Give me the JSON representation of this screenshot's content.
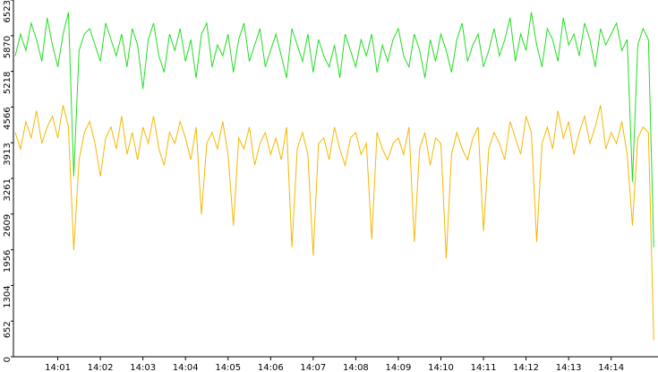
{
  "chart_data": {
    "type": "line",
    "x": [
      0,
      0.125,
      0.25,
      0.375,
      0.5,
      0.625,
      0.75,
      0.875,
      1,
      1.125,
      1.25,
      1.375,
      1.5,
      1.625,
      1.75,
      1.875,
      2,
      2.125,
      2.25,
      2.375,
      2.5,
      2.625,
      2.75,
      2.875,
      3,
      3.125,
      3.25,
      3.375,
      3.5,
      3.625,
      3.75,
      3.875,
      4,
      4.125,
      4.25,
      4.375,
      4.5,
      4.625,
      4.75,
      4.875,
      5,
      5.125,
      5.25,
      5.375,
      5.5,
      5.625,
      5.75,
      5.875,
      6,
      6.125,
      6.25,
      6.375,
      6.5,
      6.625,
      6.75,
      6.875,
      7,
      7.125,
      7.25,
      7.375,
      7.5,
      7.625,
      7.75,
      7.875,
      8,
      8.125,
      8.25,
      8.375,
      8.5,
      8.625,
      8.75,
      8.875,
      9,
      9.125,
      9.25,
      9.375,
      9.5,
      9.625,
      9.75,
      9.875,
      10,
      10.125,
      10.25,
      10.375,
      10.5,
      10.625,
      10.75,
      10.875,
      11,
      11.125,
      11.25,
      11.375,
      11.5,
      11.625,
      11.75,
      11.875,
      12,
      12.125,
      12.25,
      12.375,
      12.5,
      12.625,
      12.75,
      12.875,
      13,
      13.125,
      13.25,
      13.375,
      13.5,
      13.625,
      13.75,
      13.875,
      14,
      14.125,
      14.25,
      14.375,
      14.5,
      14.625,
      14.75,
      14.875,
      15
    ],
    "series": [
      {
        "color": "#22dd22",
        "values": [
          5500,
          5900,
          5600,
          6100,
          5800,
          5400,
          6200,
          5700,
          5300,
          5900,
          6300,
          3300,
          5600,
          5900,
          6000,
          5700,
          5400,
          6100,
          5800,
          5500,
          5900,
          5300,
          6000,
          5700,
          4900,
          5800,
          6100,
          5500,
          5200,
          5900,
          5600,
          6000,
          5400,
          5800,
          5100,
          5900,
          6100,
          5300,
          5700,
          5500,
          5900,
          5200,
          5800,
          6100,
          5400,
          5700,
          6000,
          5300,
          5600,
          5900,
          5500,
          5100,
          6000,
          5700,
          5400,
          5900,
          5200,
          5800,
          5500,
          5300,
          5700,
          5100,
          5900,
          5600,
          5300,
          5800,
          5500,
          5900,
          5200,
          5700,
          5400,
          5800,
          6000,
          5500,
          5300,
          5900,
          5600,
          5100,
          5800,
          5400,
          5900,
          5600,
          5200,
          5800,
          6100,
          5400,
          5700,
          5900,
          5300,
          5600,
          6000,
          5500,
          5800,
          6200,
          5400,
          5900,
          5600,
          6300,
          5700,
          5300,
          6000,
          5800,
          5400,
          6200,
          5700,
          5900,
          5500,
          6100,
          5800,
          5300,
          6000,
          5700,
          5900,
          6100,
          5600,
          5800,
          3200,
          5700,
          6000,
          5800,
          2000
        ]
      },
      {
        "color": "#f5b800",
        "values": [
          4100,
          3800,
          4300,
          4000,
          4500,
          3900,
          4200,
          4400,
          4000,
          4600,
          4200,
          1950,
          3600,
          4100,
          4300,
          3900,
          3300,
          4000,
          4200,
          3800,
          4400,
          3700,
          4100,
          3600,
          4200,
          3900,
          4400,
          3800,
          3500,
          4100,
          3900,
          4300,
          4000,
          3600,
          4200,
          2600,
          3900,
          4100,
          3800,
          4300,
          3700,
          2400,
          4000,
          3800,
          4200,
          3500,
          3900,
          4100,
          3700,
          4000,
          3600,
          4200,
          2000,
          3800,
          4100,
          3700,
          1850,
          3900,
          4000,
          3600,
          4200,
          3800,
          3500,
          4000,
          4100,
          3700,
          3900,
          2150,
          4100,
          3800,
          3600,
          3900,
          4000,
          3700,
          4200,
          2100,
          3800,
          4100,
          3500,
          4000,
          3900,
          1800,
          3700,
          4100,
          3800,
          3600,
          4000,
          4200,
          2300,
          3800,
          4100,
          3900,
          3600,
          4300,
          4000,
          3700,
          4400,
          4100,
          2100,
          3900,
          4200,
          3800,
          4500,
          4000,
          4300,
          3700,
          4100,
          4400,
          3900,
          4200,
          4600,
          3800,
          4100,
          3900,
          4300,
          3700,
          2400,
          4000,
          4200,
          4100,
          300
        ]
      }
    ],
    "xlim": [
      0,
      15.1
    ],
    "xticks": [
      {
        "value": 1,
        "label": "14:01"
      },
      {
        "value": 2,
        "label": "14:02"
      },
      {
        "value": 3,
        "label": "14:03"
      },
      {
        "value": 4,
        "label": "14:04"
      },
      {
        "value": 5,
        "label": "14:05"
      },
      {
        "value": 6,
        "label": "14:06"
      },
      {
        "value": 7,
        "label": "14:07"
      },
      {
        "value": 8,
        "label": "14:08"
      },
      {
        "value": 9,
        "label": "14:09"
      },
      {
        "value": 10,
        "label": "14:10"
      },
      {
        "value": 11,
        "label": "14:11"
      },
      {
        "value": 12,
        "label": "14:12"
      },
      {
        "value": 13,
        "label": "14:13"
      },
      {
        "value": 14,
        "label": "14:14"
      }
    ],
    "ylim": [
      0,
      6523
    ],
    "yticks": [
      0,
      652,
      1304,
      1956,
      2609,
      3261,
      3913,
      4566,
      5218,
      5870,
      6523
    ]
  }
}
